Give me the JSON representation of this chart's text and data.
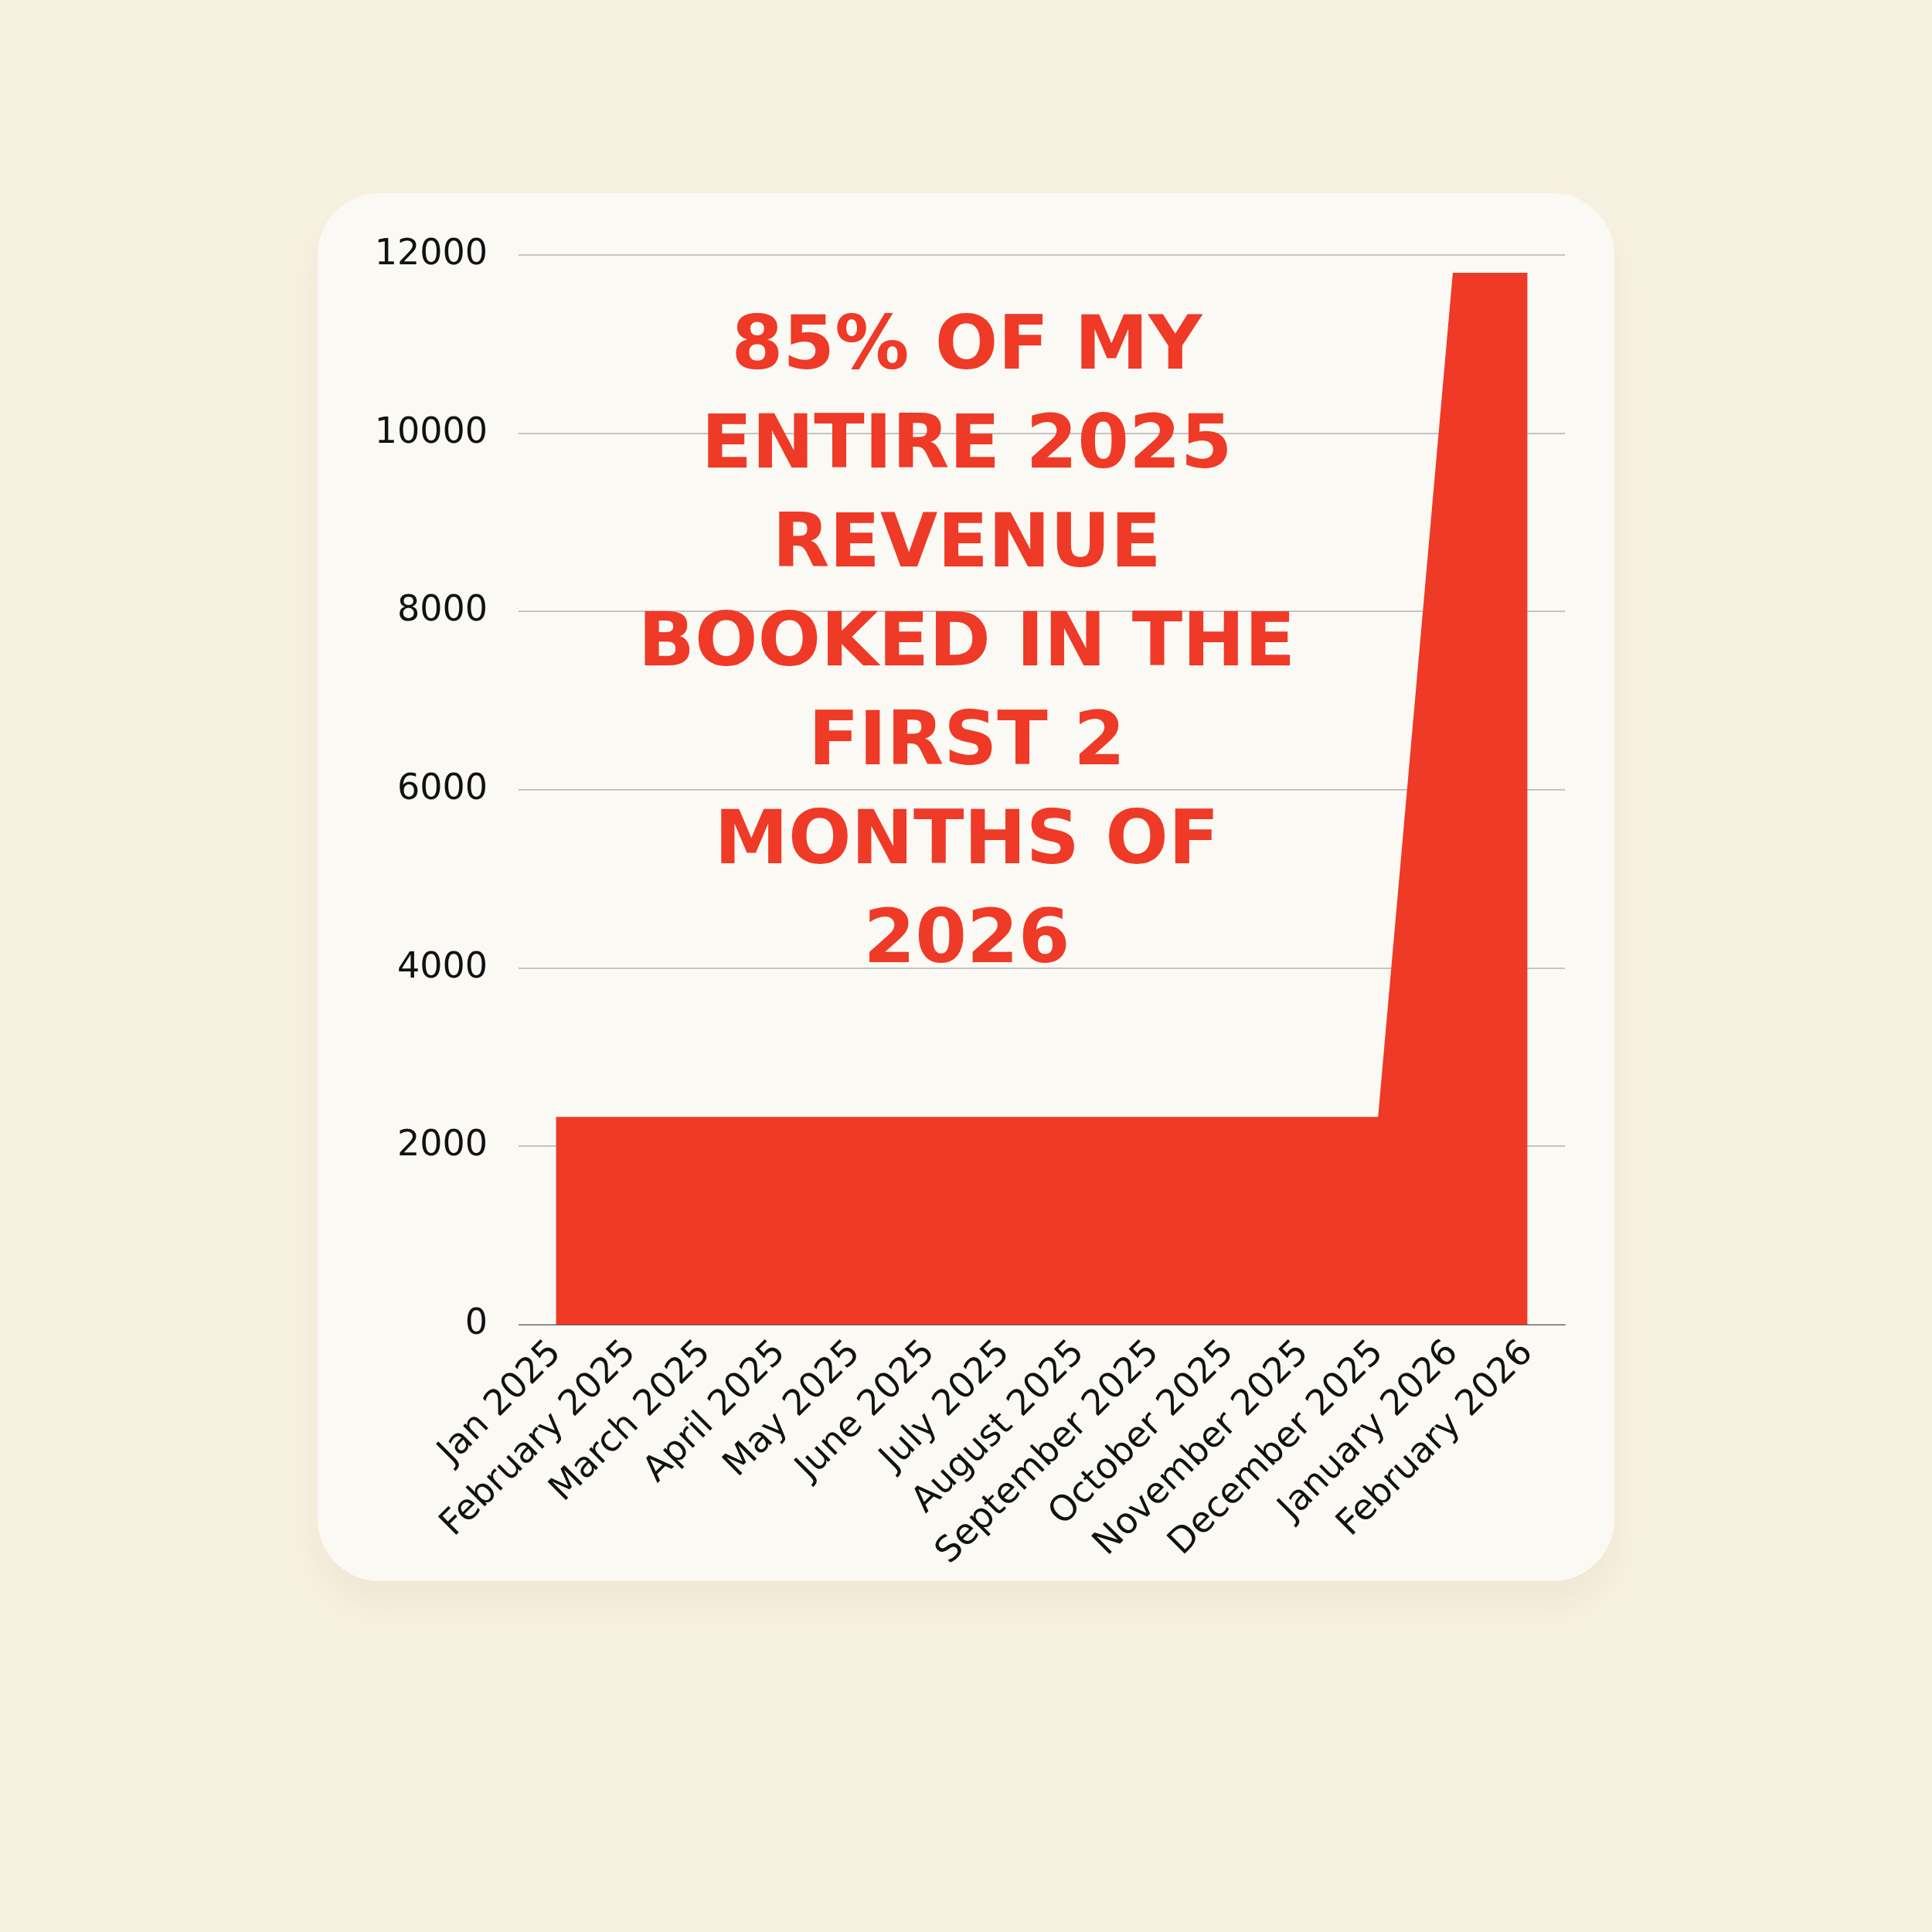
{
  "chart_data": {
    "type": "area",
    "categories": [
      "Jan 2025",
      "February 2025",
      "March 2025",
      "April 2025",
      "May 2025",
      "June 2025",
      "July 2025",
      "August 2025",
      "September 2025",
      "October 2025",
      "November 2025",
      "December 2025",
      "January 2026",
      "February 2026"
    ],
    "values": [
      2330,
      2330,
      2330,
      2330,
      2330,
      2330,
      2330,
      2330,
      2330,
      2330,
      2330,
      2330,
      11800,
      11800
    ],
    "color": "#ee3a27",
    "ylim": [
      0,
      12000
    ],
    "yticks": [
      0,
      2000,
      4000,
      6000,
      8000,
      10000,
      12000
    ],
    "grid": "y",
    "marker": "none",
    "annotations": [
      "85% OF MY ENTIRE 2025 REVENUE BOOKED IN THE FIRST 2 MONTHS OF 2026"
    ]
  }
}
